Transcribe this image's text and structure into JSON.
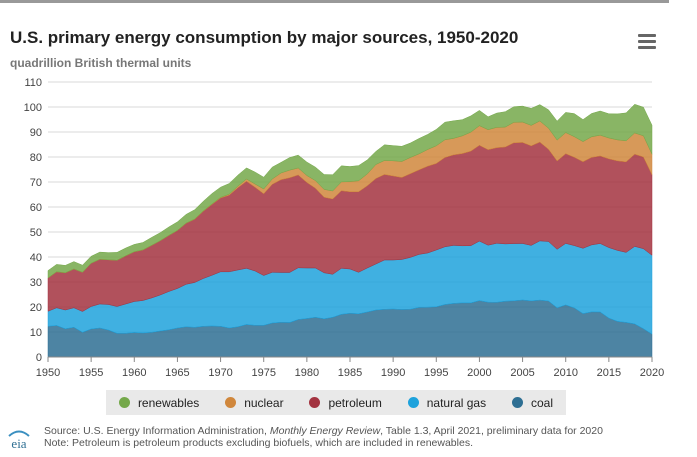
{
  "title": "U.S. primary energy consumption by major sources, 1950-2020",
  "subtitle": "quadrillion British thermal units",
  "menu_icon": "hamburger-menu-icon",
  "source": {
    "prefix": "Source: U.S. Energy Information Administration, ",
    "publication": "Monthly Energy Review",
    "suffix": ", Table 1.3, April 2021, preliminary data for 2020"
  },
  "note": "Note: Petroleum is petroleum products excluding biofuels, which are included in renewables.",
  "logo_text": "eia",
  "chart_data": {
    "type": "area",
    "stacked": true,
    "x": [
      1950,
      1951,
      1952,
      1953,
      1954,
      1955,
      1956,
      1957,
      1958,
      1959,
      1960,
      1961,
      1962,
      1963,
      1964,
      1965,
      1966,
      1967,
      1968,
      1969,
      1970,
      1971,
      1972,
      1973,
      1974,
      1975,
      1976,
      1977,
      1978,
      1979,
      1980,
      1981,
      1982,
      1983,
      1984,
      1985,
      1986,
      1987,
      1988,
      1989,
      1990,
      1991,
      1992,
      1993,
      1994,
      1995,
      1996,
      1997,
      1998,
      1999,
      2000,
      2001,
      2002,
      2003,
      2004,
      2005,
      2006,
      2007,
      2008,
      2009,
      2010,
      2011,
      2012,
      2013,
      2014,
      2015,
      2016,
      2017,
      2018,
      2019,
      2020
    ],
    "xticks": [
      1950,
      1955,
      1960,
      1965,
      1970,
      1975,
      1980,
      1985,
      1990,
      1995,
      2000,
      2005,
      2010,
      2015,
      2020
    ],
    "ylim": [
      0,
      110
    ],
    "yticks": [
      0,
      10,
      20,
      30,
      40,
      50,
      60,
      70,
      80,
      90,
      100,
      110
    ],
    "grid": true,
    "legend_position": "bottom",
    "series": [
      {
        "name": "coal",
        "color": "#2e6f93",
        "values": [
          12.3,
          12.6,
          11.3,
          11.9,
          9.9,
          11.2,
          11.6,
          10.8,
          9.5,
          9.5,
          9.8,
          9.6,
          9.9,
          10.4,
          10.9,
          11.6,
          12.1,
          11.9,
          12.3,
          12.4,
          12.3,
          11.6,
          12.1,
          13.0,
          12.7,
          12.7,
          13.6,
          13.9,
          13.8,
          15.0,
          15.4,
          15.9,
          15.3,
          15.9,
          17.1,
          17.5,
          17.3,
          18.0,
          18.8,
          19.1,
          19.2,
          18.99,
          19.12,
          19.84,
          19.91,
          20.09,
          21.0,
          21.45,
          21.66,
          21.62,
          22.58,
          21.91,
          21.9,
          22.32,
          22.47,
          22.8,
          22.45,
          22.75,
          22.39,
          19.69,
          20.83,
          19.66,
          17.38,
          18.04,
          17.99,
          15.55,
          14.23,
          13.84,
          13.24,
          11.31,
          9.18
        ]
      },
      {
        "name": "natural gas",
        "color": "#1ea2dc",
        "values": [
          6.0,
          7.1,
          7.5,
          7.8,
          8.3,
          9.0,
          9.6,
          10.2,
          10.7,
          11.7,
          12.4,
          13.0,
          13.7,
          14.4,
          15.3,
          15.8,
          17.0,
          17.9,
          19.1,
          20.3,
          21.8,
          22.5,
          22.7,
          22.5,
          21.7,
          19.9,
          20.3,
          19.9,
          20.0,
          20.7,
          20.2,
          19.7,
          18.4,
          17.2,
          18.4,
          17.7,
          16.6,
          17.6,
          18.4,
          19.7,
          19.6,
          20.0,
          20.7,
          21.2,
          21.7,
          22.7,
          23.1,
          23.2,
          22.8,
          22.9,
          23.8,
          22.8,
          23.6,
          22.9,
          22.9,
          22.6,
          22.2,
          23.7,
          23.8,
          23.4,
          24.6,
          24.9,
          26.1,
          26.8,
          27.4,
          28.2,
          28.4,
          28.0,
          31.0,
          32.0,
          31.5
        ]
      },
      {
        "name": "petroleum",
        "color": "#a33340",
        "values": [
          13.3,
          14.4,
          14.9,
          15.5,
          15.7,
          17.3,
          17.9,
          17.9,
          18.5,
          19.3,
          19.9,
          20.2,
          21.0,
          21.7,
          22.4,
          23.2,
          24.4,
          25.3,
          26.9,
          28.3,
          29.5,
          30.6,
          32.9,
          34.8,
          33.5,
          32.7,
          35.2,
          37.1,
          37.9,
          37.1,
          34.2,
          31.9,
          30.2,
          30.1,
          31.0,
          30.9,
          32.2,
          32.9,
          34.2,
          34.2,
          33.6,
          32.8,
          33.5,
          33.8,
          34.7,
          34.6,
          35.7,
          36.2,
          36.9,
          37.8,
          38.3,
          38.2,
          38.2,
          38.8,
          40.3,
          40.4,
          39.8,
          39.5,
          36.9,
          35.3,
          35.9,
          35.3,
          34.6,
          35.0,
          35.0,
          35.5,
          35.8,
          36.2,
          36.9,
          36.7,
          32.2
        ]
      },
      {
        "name": "nuclear",
        "color": "#d0873c",
        "values": [
          0,
          0,
          0,
          0,
          0,
          0,
          0,
          0,
          0,
          0,
          0.01,
          0.02,
          0.03,
          0.04,
          0.04,
          0.04,
          0.06,
          0.09,
          0.14,
          0.15,
          0.24,
          0.41,
          0.58,
          0.91,
          1.27,
          1.9,
          2.11,
          2.7,
          3.02,
          2.78,
          2.74,
          3.01,
          3.13,
          3.2,
          3.55,
          4.08,
          4.38,
          4.75,
          5.59,
          5.6,
          6.1,
          6.42,
          6.48,
          6.41,
          6.69,
          7.08,
          7.09,
          6.6,
          7.07,
          7.61,
          7.86,
          8.03,
          8.14,
          7.96,
          8.22,
          8.16,
          8.21,
          8.46,
          8.43,
          8.36,
          8.43,
          8.27,
          8.06,
          8.24,
          8.34,
          8.34,
          8.43,
          8.42,
          8.44,
          8.45,
          8.25
        ]
      },
      {
        "name": "renewables",
        "color": "#74a84a",
        "values": [
          2.98,
          2.96,
          2.94,
          2.94,
          2.83,
          2.78,
          2.87,
          2.87,
          3.12,
          3.1,
          2.93,
          2.97,
          3.17,
          3.19,
          3.36,
          3.39,
          3.46,
          3.75,
          3.85,
          4.2,
          4.08,
          4.29,
          4.45,
          4.43,
          4.77,
          4.72,
          4.77,
          4.25,
          5.04,
          5.17,
          5.43,
          5.41,
          5.98,
          6.5,
          6.45,
          6.02,
          6.08,
          5.59,
          5.23,
          6.28,
          6.04,
          6.07,
          5.8,
          6.15,
          6.04,
          6.56,
          7.01,
          7.02,
          6.49,
          6.52,
          6.1,
          5.16,
          5.73,
          6.13,
          6.23,
          6.4,
          6.79,
          6.57,
          7.34,
          7.6,
          8.09,
          9.23,
          8.8,
          9.33,
          9.68,
          9.7,
          10.38,
          11.16,
          11.52,
          11.47,
          11.59
        ]
      }
    ]
  }
}
